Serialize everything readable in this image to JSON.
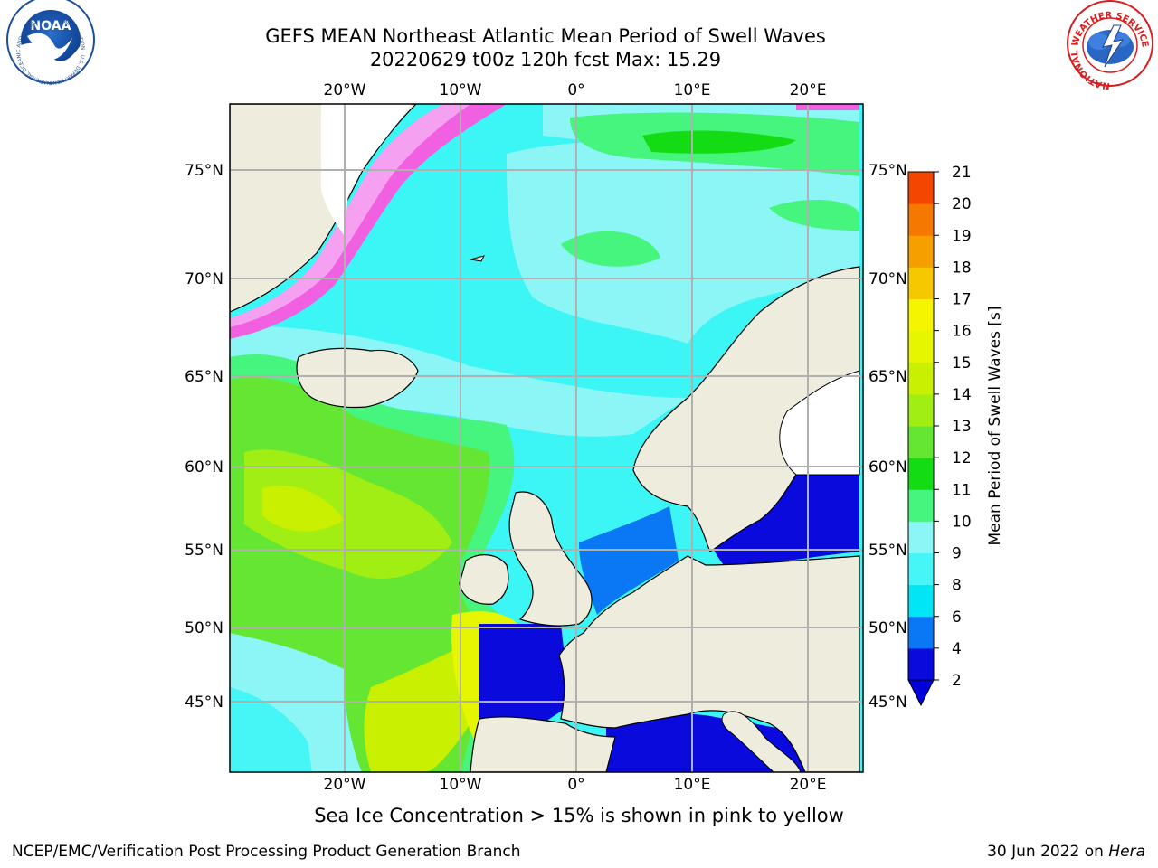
{
  "title": {
    "line1": "GEFS MEAN Northeast Atlantic Mean Period of Swell Waves",
    "line2": "20220629 t00z 120h fcst   Max: 15.29"
  },
  "logos": {
    "noaa_text": "NOAA",
    "noaa_ring": "NATIONAL OCEANIC AND ATMOSPHERIC ADMINISTRATION · U.S. DEPARTMENT OF COMMERCE",
    "nws_ring": "NATIONAL WEATHER SERVICE"
  },
  "map": {
    "lon_ticks": [
      "20°W",
      "10°W",
      "0°",
      "10°E",
      "20°E"
    ],
    "lat_ticks": [
      "75°N",
      "70°N",
      "65°N",
      "60°N",
      "55°N",
      "50°N",
      "45°N"
    ],
    "colors": {
      "land": "#eeeddd",
      "grid": "#b0b0b0",
      "coast": "#000000"
    }
  },
  "colorbar": {
    "label": "Mean Period of Swell Waves [s]",
    "levels": [
      "2",
      "4",
      "6",
      "8",
      "9",
      "10",
      "11",
      "12",
      "13",
      "14",
      "15",
      "16",
      "17",
      "18",
      "19",
      "20",
      "21"
    ],
    "colors": [
      "#0a0adc",
      "#0a78f5",
      "#00e6f5",
      "#46f5f5",
      "#8cf5f5",
      "#46f57d",
      "#14dc14",
      "#64e632",
      "#a0ee14",
      "#c8f000",
      "#e6f500",
      "#f5f500",
      "#f5c800",
      "#f5a000",
      "#f57800",
      "#f54600",
      "#f50000"
    ],
    "under_color": "#0000dc"
  },
  "subtitle": "Sea Ice Concentration > 15% is shown in pink to yellow",
  "footer": {
    "left": "NCEP/EMC/Verification Post Processing Product Generation Branch",
    "date": "30 Jun 2022 on ",
    "host": "Hera"
  }
}
